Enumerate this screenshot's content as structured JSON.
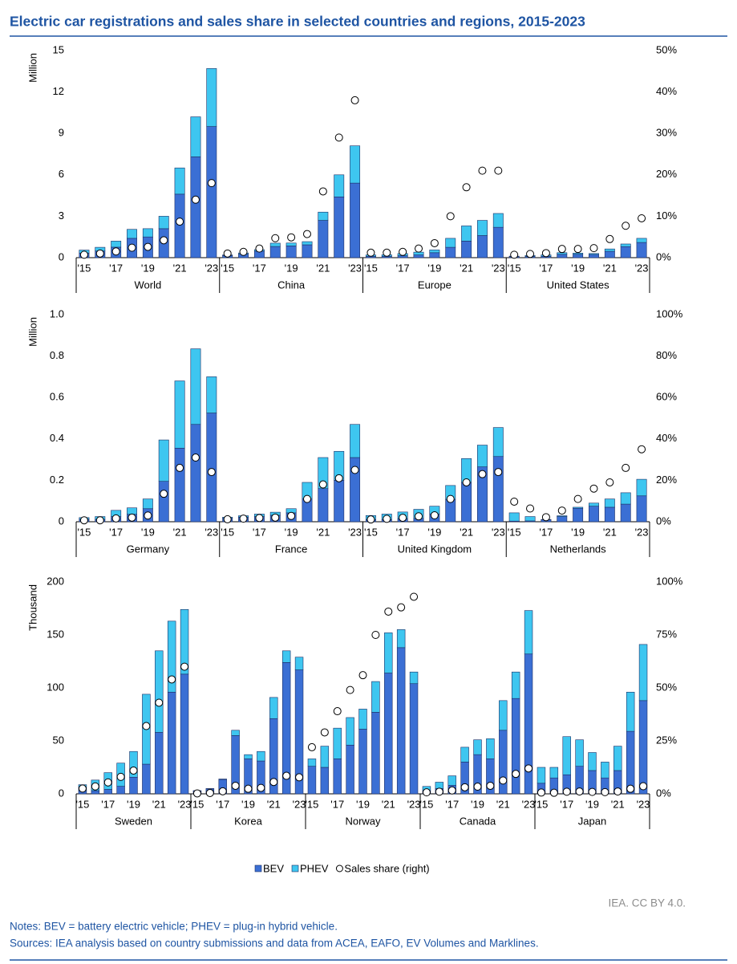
{
  "title": "Electric car registrations and sales share in selected countries and regions, 2015-2023",
  "legend": [
    {
      "name": "BEV",
      "color": "#3b6fd4"
    },
    {
      "name": "PHEV",
      "color": "#3ec6f0"
    },
    {
      "name": "Sales share (right)",
      "color": "#ffffff"
    }
  ],
  "credit": "IEA. CC BY 4.0.",
  "notes": "Notes: BEV = battery electric vehicle; PHEV = plug-in hybrid vehicle.",
  "sources": "Sources: IEA analysis based on country submissions and data from ACEA, EAFO, EV Volumes and Marklines.",
  "chart_data": [
    {
      "type": "bar",
      "ylabel": "Million",
      "ylim": [
        0,
        15
      ],
      "yticks": [
        0,
        3,
        6,
        9,
        12,
        15
      ],
      "y2lim": [
        0,
        50
      ],
      "y2ticks": [
        {
          "value": 0,
          "label": "0%"
        },
        {
          "value": 10,
          "label": "10%"
        },
        {
          "value": 20,
          "label": "20%"
        },
        {
          "value": 30,
          "label": "30%"
        },
        {
          "value": 40,
          "label": "40%"
        },
        {
          "value": 50,
          "label": "50%"
        }
      ],
      "categories": [
        "'15",
        null,
        "'17",
        null,
        "'19",
        null,
        "'21",
        null,
        "'23"
      ],
      "groups": [
        {
          "name": "World",
          "bev": [
            0.33,
            0.48,
            0.76,
            1.4,
            1.5,
            2.1,
            4.6,
            7.3,
            9.5
          ],
          "phev": [
            0.22,
            0.27,
            0.44,
            0.65,
            0.6,
            0.9,
            1.9,
            2.9,
            4.2
          ],
          "share": [
            0.7,
            1.0,
            1.5,
            2.4,
            2.6,
            4.2,
            8.7,
            14,
            18
          ]
        },
        {
          "name": "China",
          "bev": [
            0.15,
            0.26,
            0.47,
            0.81,
            0.85,
            0.93,
            2.7,
            4.4,
            5.4
          ],
          "phev": [
            0.05,
            0.08,
            0.11,
            0.24,
            0.21,
            0.23,
            0.6,
            1.6,
            2.7
          ],
          "share": [
            1,
            1.4,
            2.2,
            4.7,
            4.9,
            5.7,
            16,
            29,
            38
          ]
        },
        {
          "name": "Europe",
          "bev": [
            0.1,
            0.1,
            0.14,
            0.2,
            0.36,
            0.75,
            1.2,
            1.6,
            2.2
          ],
          "phev": [
            0.1,
            0.11,
            0.16,
            0.2,
            0.2,
            0.65,
            1.1,
            1.1,
            1.0
          ],
          "share": [
            1.2,
            1.2,
            1.4,
            2.2,
            3.5,
            10,
            17,
            21,
            21
          ]
        },
        {
          "name": "United States",
          "bev": [
            0.07,
            0.09,
            0.1,
            0.24,
            0.24,
            0.23,
            0.46,
            0.8,
            1.1
          ],
          "phev": [
            0.04,
            0.07,
            0.1,
            0.12,
            0.09,
            0.07,
            0.17,
            0.19,
            0.3
          ],
          "share": [
            0.7,
            0.9,
            1.1,
            2.1,
            2.1,
            2.3,
            4.5,
            7.7,
            9.5
          ]
        }
      ]
    },
    {
      "type": "bar",
      "ylabel": "Million",
      "ylim": [
        0,
        1
      ],
      "yticks": [
        0,
        0.2,
        0.4,
        0.6,
        0.8,
        {
          "value": 1,
          "label": "1.0"
        }
      ],
      "y2lim": [
        0,
        100
      ],
      "y2ticks": [
        {
          "value": 0,
          "label": "0%"
        },
        {
          "value": 20,
          "label": "20%"
        },
        {
          "value": 40,
          "label": "40%"
        },
        {
          "value": 60,
          "label": "60%"
        },
        {
          "value": 80,
          "label": "80%"
        },
        {
          "value": 100,
          "label": "100%"
        }
      ],
      "categories": [
        "'15",
        null,
        "'17",
        null,
        "'19",
        null,
        "'21",
        null,
        "'23"
      ],
      "groups": [
        {
          "name": "Germany",
          "bev": [
            0.012,
            0.011,
            0.025,
            0.036,
            0.063,
            0.195,
            0.355,
            0.47,
            0.525
          ],
          "phev": [
            0.008,
            0.014,
            0.03,
            0.031,
            0.047,
            0.2,
            0.325,
            0.365,
            0.175
          ],
          "share": [
            0.7,
            0.7,
            1.6,
            2.0,
            3.0,
            13.5,
            26,
            31,
            24
          ]
        },
        {
          "name": "France",
          "bev": [
            0.017,
            0.022,
            0.025,
            0.031,
            0.043,
            0.11,
            0.16,
            0.2,
            0.31
          ],
          "phev": [
            0.005,
            0.007,
            0.012,
            0.015,
            0.02,
            0.08,
            0.15,
            0.14,
            0.16
          ],
          "share": [
            1.2,
            1.5,
            1.8,
            2.0,
            2.8,
            11,
            18,
            21,
            25
          ]
        },
        {
          "name": "United Kingdom",
          "bev": [
            0.01,
            0.01,
            0.014,
            0.016,
            0.038,
            0.108,
            0.19,
            0.265,
            0.315
          ],
          "phev": [
            0.02,
            0.027,
            0.033,
            0.044,
            0.037,
            0.067,
            0.115,
            0.105,
            0.14
          ],
          "share": [
            1.1,
            1.4,
            1.9,
            2.6,
            3.1,
            11,
            19,
            23,
            24
          ]
        },
        {
          "name": "Netherlands",
          "bev": [
            0.003,
            0.004,
            0.01,
            0.025,
            0.065,
            0.075,
            0.07,
            0.085,
            0.125
          ],
          "phev": [
            0.04,
            0.021,
            0.001,
            0.004,
            0.005,
            0.015,
            0.04,
            0.055,
            0.08
          ],
          "share": [
            9.7,
            6.4,
            2.2,
            5.4,
            11,
            16,
            19,
            26,
            35
          ]
        }
      ]
    },
    {
      "type": "bar",
      "ylabel": "Thousand",
      "ylim": [
        0,
        200
      ],
      "yticks": [
        0,
        50,
        100,
        150,
        200
      ],
      "y2lim": [
        0,
        100
      ],
      "y2ticks": [
        {
          "value": 0,
          "label": "0%"
        },
        {
          "value": 25,
          "label": "25%"
        },
        {
          "value": 50,
          "label": "50%"
        },
        {
          "value": 75,
          "label": "75%"
        },
        {
          "value": 100,
          "label": "100%"
        }
      ],
      "categories": [
        "'15",
        null,
        "'17",
        null,
        "'19",
        null,
        "'21",
        null,
        "'23"
      ],
      "groups": [
        {
          "name": "Sweden",
          "bev": [
            3,
            3,
            4.2,
            7.1,
            15.7,
            28,
            58,
            96,
            113
          ],
          "phev": [
            5.6,
            10,
            15.8,
            21.9,
            24.3,
            66,
            77,
            67,
            61
          ],
          "share": [
            2.5,
            3.5,
            5.4,
            8,
            11,
            32,
            43,
            54,
            60
          ]
        },
        {
          "name": "Korea",
          "bev": [
            2.9,
            4.7,
            13.5,
            55,
            33,
            31,
            71,
            124,
            117
          ],
          "phev": [
            0.1,
            0.3,
            0.5,
            5,
            4,
            9,
            20,
            11,
            12
          ],
          "share": [
            0.2,
            0.4,
            1.2,
            3.8,
            2.4,
            2.8,
            5.6,
            8.5,
            7.8
          ]
        },
        {
          "name": "Norway",
          "bev": [
            26,
            25,
            33,
            46,
            61,
            77,
            114,
            138,
            104
          ],
          "phev": [
            7,
            20,
            29,
            26,
            19,
            29,
            38,
            17,
            11
          ],
          "share": [
            22,
            29,
            39,
            49,
            56,
            75,
            86,
            88,
            93
          ]
        },
        {
          "name": "Canada",
          "bev": [
            3,
            5,
            8,
            30,
            37,
            33,
            60,
            90,
            132
          ],
          "phev": [
            4,
            6,
            9,
            14,
            14,
            19,
            28,
            25,
            41
          ],
          "share": [
            0.7,
            1.0,
            1.6,
            3.1,
            3.4,
            3.8,
            6.3,
            9.4,
            12
          ]
        },
        {
          "name": "Japan",
          "bev": [
            10,
            15,
            18,
            26,
            22,
            15,
            22,
            59,
            88
          ],
          "phev": [
            15,
            10,
            36,
            25,
            17,
            15,
            23,
            37,
            53
          ],
          "share": [
            0.6,
            0.5,
            1.0,
            1.1,
            0.9,
            0.8,
            1.1,
            2.4,
            3.6
          ]
        }
      ]
    }
  ]
}
